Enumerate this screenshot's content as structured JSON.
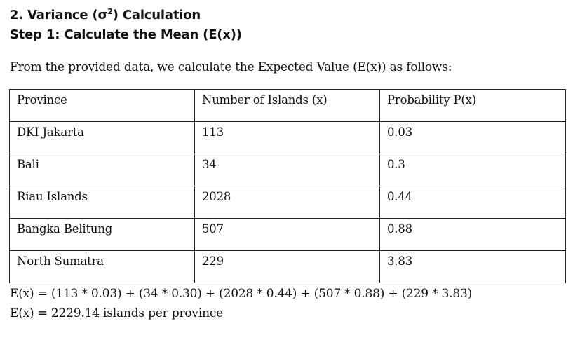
{
  "document": {
    "heading_prefix": "2. Variance (σ",
    "heading_sup": "2",
    "heading_suffix": ") Calculation",
    "step_title": "Step 1: Calculate the Mean (E(x))",
    "intro": "From the provided data, we calculate the Expected Value (E(x)) as follows:",
    "table": {
      "headers": [
        "Province",
        "Number of Islands (x)",
        "Probability P(x)"
      ],
      "rows": [
        [
          "DKI Jakarta",
          "113",
          "0.03"
        ],
        [
          "Bali",
          "34",
          "0.3"
        ],
        [
          "Riau Islands",
          "2028",
          "0.44"
        ],
        [
          "Bangka Belitung",
          "507",
          "0.88"
        ],
        [
          "North Sumatra",
          "229",
          "3.83"
        ]
      ]
    },
    "equation_line1": "E(x) = (113 * 0.03) + (34 * 0.30) + (2028 * 0.44) + (507 * 0.88) + (229 * 3.83)",
    "equation_line2": "E(x) = 2229.14 islands per province"
  }
}
